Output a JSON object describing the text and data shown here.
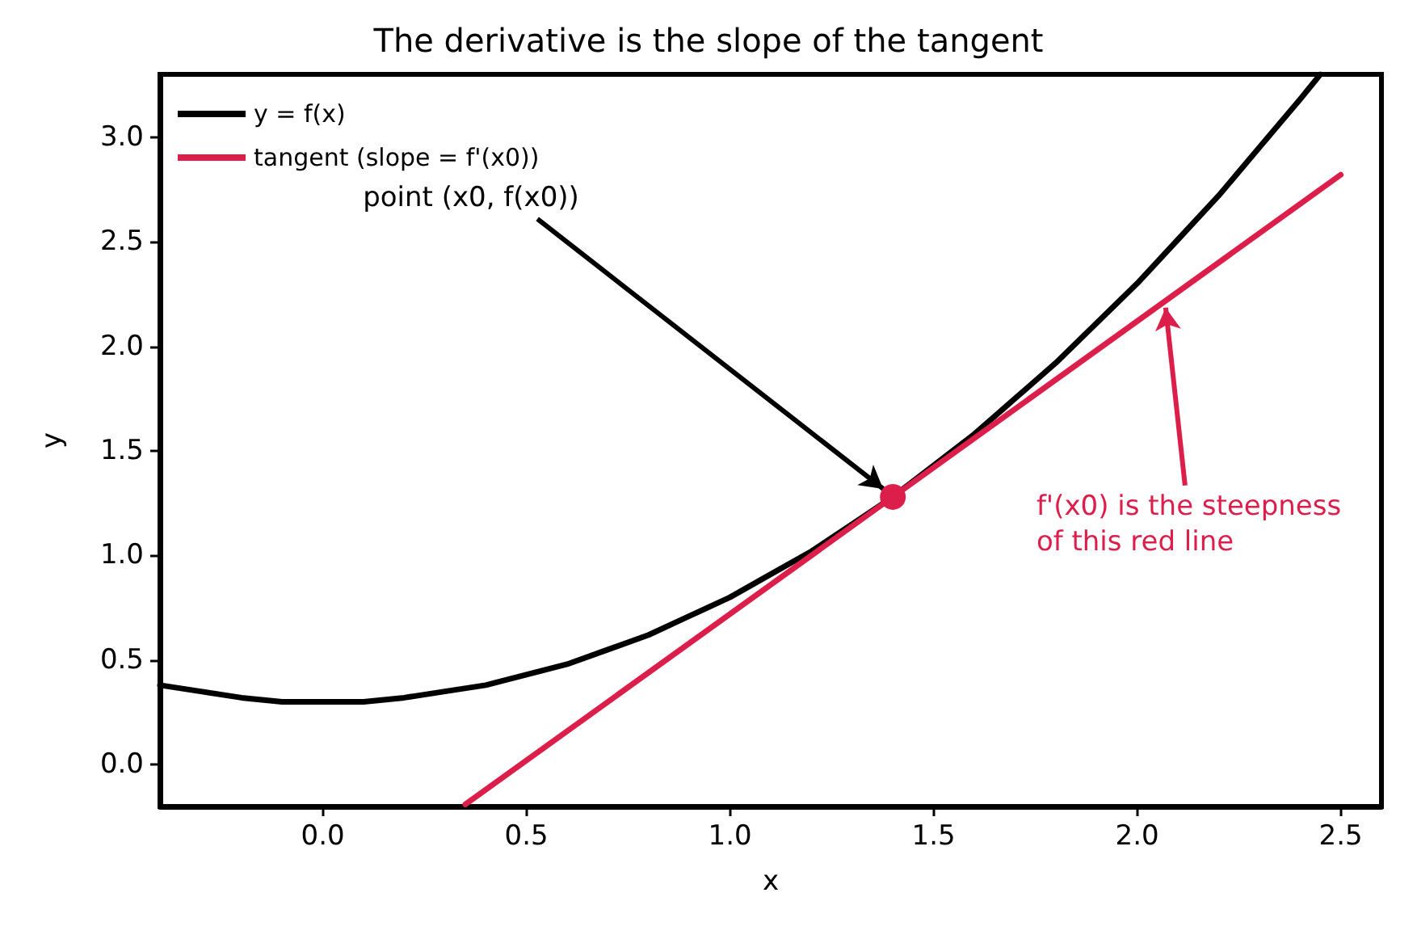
{
  "chart_data": {
    "type": "line",
    "title": "The derivative is the slope of the tangent",
    "xlabel": "x",
    "ylabel": "y",
    "xlim": [
      -0.4,
      2.6
    ],
    "ylim": [
      -0.2,
      3.3
    ],
    "xticks": [
      {
        "value": 0,
        "label": "0.0"
      },
      {
        "value": 0.5,
        "label": "0.5"
      },
      {
        "value": 1,
        "label": "1.0"
      },
      {
        "value": 1.5,
        "label": "1.5"
      },
      {
        "value": 2,
        "label": "2.0"
      },
      {
        "value": 2.5,
        "label": "2.5"
      }
    ],
    "yticks": [
      {
        "value": 0,
        "label": "0.0"
      },
      {
        "value": 0.5,
        "label": "0.5"
      },
      {
        "value": 1,
        "label": "1.0"
      },
      {
        "value": 1.5,
        "label": "1.5"
      },
      {
        "value": 2,
        "label": "2.0"
      },
      {
        "value": 2.5,
        "label": "2.5"
      },
      {
        "value": 3,
        "label": "3.0"
      }
    ],
    "grid": false,
    "legend": "top left",
    "marker": "none",
    "line_style": "solid",
    "series": [
      {
        "name": "y = f(x)",
        "color": "#000000",
        "x": [
          -0.4,
          -0.3,
          -0.2,
          -0.1,
          0,
          0.1,
          0.2,
          0.3,
          0.4,
          0.5,
          0.6,
          0.7,
          0.8,
          0.9,
          1,
          1.1,
          1.2,
          1.3,
          1.4,
          1.5,
          1.6,
          1.7,
          1.8,
          1.9,
          2,
          2.1,
          2.2,
          2.3,
          2.4,
          2.45
        ],
        "values": [
          0.38,
          0.35,
          0.32,
          0.3,
          0.3,
          0.3,
          0.32,
          0.35,
          0.38,
          0.43,
          0.48,
          0.55,
          0.62,
          0.71,
          0.8,
          0.91,
          1.02,
          1.15,
          1.28,
          1.43,
          1.58,
          1.75,
          1.92,
          2.11,
          2.3,
          2.51,
          2.72,
          2.95,
          3.18,
          3.3
        ]
      },
      {
        "name": "tangent (slope = f'(x0))",
        "color": "#dc1e4b",
        "x": [
          0.35,
          2.5
        ],
        "values": [
          -0.19,
          2.82
        ]
      },
      {
        "type": "scatter",
        "color": "#dc1e4b",
        "marker": "circle",
        "x": [
          1.4
        ],
        "values": [
          1.28
        ]
      }
    ],
    "annotations": [
      {
        "text": "point (x0, f(x0))",
        "x": 1.4,
        "y": 1.28
      },
      {
        "text": "f'(x0) is the steepness\nof this red line",
        "x": 2.07,
        "y": 2.2
      }
    ]
  }
}
